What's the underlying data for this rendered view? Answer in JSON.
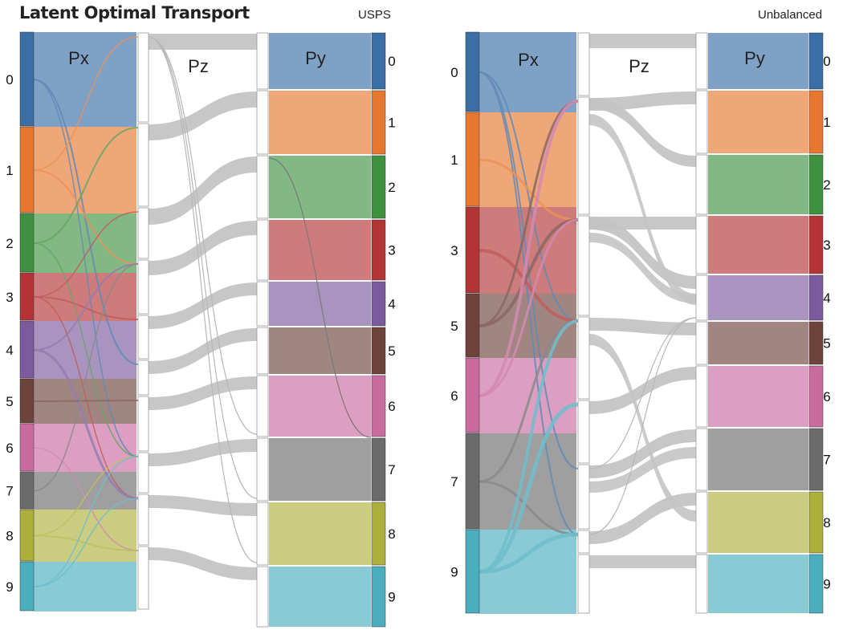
{
  "title": "Latent Optimal Transport",
  "panels": [
    {
      "id": "usps",
      "label": "USPS",
      "px_label": "Px",
      "pz_label": "Pz",
      "py_label": "Py",
      "source_classes": [
        "0",
        "1",
        "2",
        "3",
        "4",
        "5",
        "6",
        "7",
        "8",
        "9"
      ],
      "target_classes": [
        "0",
        "1",
        "2",
        "3",
        "4",
        "5",
        "6",
        "7",
        "8",
        "9"
      ]
    },
    {
      "id": "unbalanced",
      "label": "Unbalanced",
      "px_label": "Px",
      "pz_label": "Pz",
      "py_label": "Py",
      "source_classes": [
        "0",
        "1",
        "3",
        "5",
        "6",
        "7",
        "9"
      ],
      "target_classes": [
        "0",
        "1",
        "2",
        "3",
        "4",
        "5",
        "6",
        "7",
        "8",
        "9"
      ]
    }
  ],
  "class_colors": {
    "0": "#3a6ea5",
    "1": "#e6772e",
    "2": "#3f9140",
    "3": "#b33434",
    "4": "#7b5a9e",
    "5": "#6e433b",
    "6": "#c96b9f",
    "7": "#6b6b6b",
    "8": "#aeb03c",
    "9": "#4baebe"
  },
  "flow_color": "#c4c4c4"
}
